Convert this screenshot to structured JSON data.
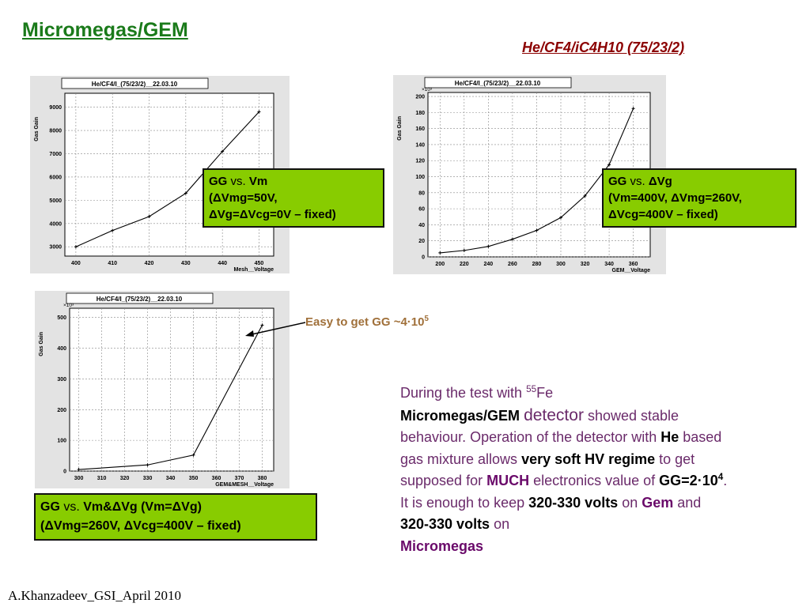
{
  "title": "Micromegas/GEM",
  "gas_mixture": "He/CF4/iC4H10 (75/23/2)",
  "chart_data": [
    {
      "type": "line",
      "title": "He/CF4/I_(75/23/2)__22.03.10",
      "xlabel": "Mesh__Voltage",
      "ylabel": "Gas Gain",
      "yexp": "",
      "xlim": [
        397,
        454
      ],
      "ylim": [
        2600,
        9600
      ],
      "xticks": [
        400,
        410,
        420,
        430,
        440,
        450
      ],
      "yticks": [
        3000,
        4000,
        5000,
        6000,
        7000,
        8000,
        9000
      ],
      "x": [
        400,
        410,
        420,
        430,
        440,
        450
      ],
      "y": [
        3000,
        3700,
        4300,
        5300,
        7100,
        8800
      ]
    },
    {
      "type": "line",
      "title": "He/CF4/I_(75/23/2)__22.03.10",
      "xlabel": "GEM__Voltage",
      "ylabel": "Gas Gain",
      "yexp": "×10³",
      "xlim": [
        190,
        374
      ],
      "ylim": [
        0,
        205
      ],
      "xticks": [
        200,
        220,
        240,
        260,
        280,
        300,
        320,
        340,
        360
      ],
      "yticks": [
        0,
        20,
        40,
        60,
        80,
        100,
        120,
        140,
        160,
        180,
        200
      ],
      "x": [
        200,
        220,
        240,
        260,
        280,
        300,
        320,
        340,
        360
      ],
      "y": [
        5,
        8,
        13,
        22,
        33,
        49,
        76,
        115,
        185
      ]
    },
    {
      "type": "line",
      "title": "He/CF4/I_(75/23/2)__22.03.10",
      "xlabel": "GEM&MESH__Voltage",
      "ylabel": "Gas Gain",
      "yexp": "×10³",
      "xlim": [
        296,
        385
      ],
      "ylim": [
        0,
        530
      ],
      "xticks": [
        300,
        310,
        320,
        330,
        340,
        350,
        360,
        370,
        380
      ],
      "yticks": [
        0,
        100,
        200,
        300,
        400,
        500
      ],
      "x": [
        300,
        330,
        350,
        380
      ],
      "y": [
        5,
        20,
        52,
        475
      ]
    }
  ],
  "callouts": {
    "c1": {
      "line1_a": "GG",
      "line1_b": " vs. ",
      "line1_c": "Vm",
      "line2": "(ΔVmg=50V,",
      "line3": "ΔVg=ΔVcg=0V – fixed)"
    },
    "c2": {
      "line1_a": "GG",
      "line1_b": " vs. ",
      "line1_c": "ΔVg",
      "line2": "(Vm=400V, ΔVmg=260V,",
      "line3": "ΔVcg=400V – fixed)"
    },
    "c3": {
      "line1_a": "GG",
      "line1_b": " vs. ",
      "line1_c": "Vm&ΔVg (Vm=ΔVg)",
      "line2": "(ΔVmg=260V, ΔVcg=400V – fixed)"
    }
  },
  "annotation": {
    "text": "Easy to get GG ~4·10",
    "sup": "5"
  },
  "paragraph": {
    "p1": "During the test with ",
    "p1_sup": "55",
    "p1_b": "Fe",
    "p2": "Micromegas/GEM",
    "p3": "detector",
    "p4": " showed stable behaviour. Operation of the detector with ",
    "p5": "He",
    "p6": " based gas mixture allows ",
    "p7": "very soft HV regime",
    "p8": " to get supposed for ",
    "p9": "MUCH",
    "p10": " electronics value of ",
    "p11": "GG=2·10",
    "p11_sup": "4",
    "p12": ". It is enough to keep ",
    "p13": "320-330 volts",
    "p14": " on ",
    "p15": "Gem",
    "p16": " and ",
    "p17": "320-330 volts",
    "p18": " on ",
    "p19": "Micromegas"
  },
  "footer": "A.Khanzadeev_GSI_April 2010",
  "colors": {
    "title": "#1a7a1a",
    "callout_bg": "#88cc00",
    "annotation": "#a0703a",
    "paragraph": "#6a2a6a"
  }
}
